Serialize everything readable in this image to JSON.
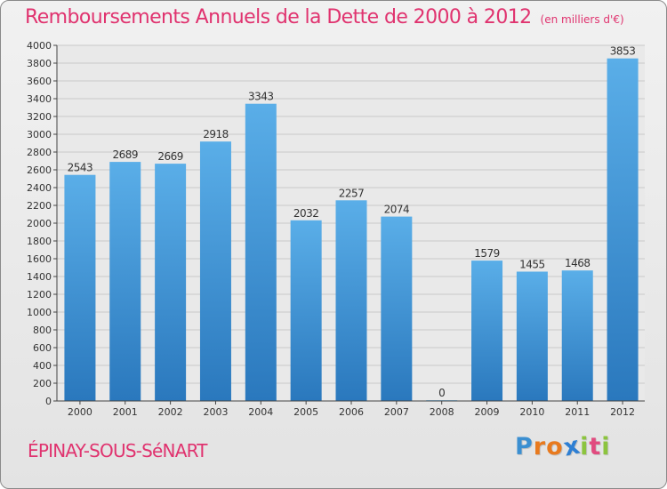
{
  "header": {
    "title": "Remboursements Annuels de la Dette de 2000 à 2012",
    "subtitle": "(en milliers d'€)"
  },
  "footer": {
    "commune": "ÉPINAY-SOUS-SéNART",
    "logo_letters": [
      "P",
      "r",
      "o",
      "x",
      "i",
      "t",
      "i"
    ],
    "logo_colors": [
      "#3b8fd1",
      "#e87a1e",
      "#e87a1e",
      "#2e7fd3",
      "#8cc43e",
      "#e14b7f",
      "#8cc43e"
    ]
  },
  "colors": {
    "bar_top": "#5aaee8",
    "bar_bottom": "#2a78bd",
    "grid": "#c9c9c9",
    "accent": "#e0336f"
  },
  "chart_data": {
    "type": "bar",
    "title": "Remboursements Annuels de la Dette de 2000 à 2012",
    "xlabel": "",
    "ylabel": "en milliers d'€",
    "categories": [
      "2000",
      "2001",
      "2002",
      "2003",
      "2004",
      "2005",
      "2006",
      "2007",
      "2008",
      "2009",
      "2010",
      "2011",
      "2012"
    ],
    "values": [
      2543,
      2689,
      2669,
      2918,
      3343,
      2032,
      2257,
      2074,
      0,
      1579,
      1455,
      1468,
      3853
    ],
    "ylim": [
      0,
      4000
    ],
    "ytick_step": 200,
    "grid": true
  }
}
